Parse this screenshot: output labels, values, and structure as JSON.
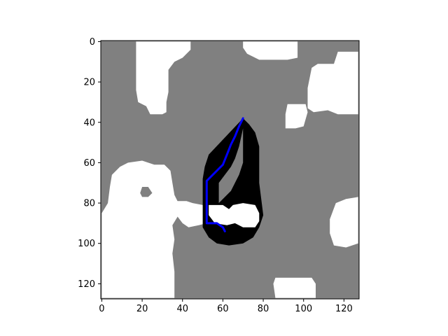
{
  "chart_data": {
    "type": "heatmap",
    "title": "",
    "xlabel": "",
    "ylabel": "",
    "xlim": [
      -0.5,
      127.5
    ],
    "ylim": [
      127.5,
      -0.5
    ],
    "y_axis_inverted": true,
    "grid": false,
    "colormap": {
      "background": "#808080",
      "free": "#ffffff",
      "obstacle": "#000000"
    },
    "x_ticks": [
      0,
      20,
      40,
      60,
      80,
      100,
      120
    ],
    "y_ticks": [
      0,
      20,
      40,
      60,
      80,
      100,
      120
    ],
    "x_tick_labels": [
      "0",
      "20",
      "40",
      "60",
      "80",
      "100",
      "120"
    ],
    "y_tick_labels": [
      "0",
      "20",
      "40",
      "60",
      "80",
      "100",
      "120"
    ],
    "free_regions": [
      {
        "points": [
          [
            17,
            0
          ],
          [
            44,
            0
          ],
          [
            44,
            4
          ],
          [
            40,
            8
          ],
          [
            36,
            10
          ],
          [
            33,
            14
          ],
          [
            33,
            25
          ],
          [
            32,
            30
          ],
          [
            32,
            35
          ],
          [
            30,
            36
          ],
          [
            24,
            36
          ],
          [
            22,
            32
          ],
          [
            18,
            30
          ],
          [
            17,
            24
          ],
          [
            17,
            10
          ]
        ]
      },
      {
        "points": [
          [
            70,
            0
          ],
          [
            97,
            0
          ],
          [
            97,
            8
          ],
          [
            92,
            9
          ],
          [
            78,
            9
          ],
          [
            72,
            6
          ],
          [
            70,
            3
          ]
        ]
      },
      {
        "points": [
          [
            117,
            5
          ],
          [
            127,
            5
          ],
          [
            127,
            36
          ],
          [
            117,
            36
          ],
          [
            112,
            34
          ],
          [
            105,
            35
          ],
          [
            102,
            33
          ],
          [
            102,
            23
          ],
          [
            104,
            13
          ],
          [
            107,
            11
          ],
          [
            115,
            11
          ]
        ]
      },
      {
        "points": [
          [
            92,
            31
          ],
          [
            101,
            31
          ],
          [
            102,
            35
          ],
          [
            100,
            42
          ],
          [
            96,
            43
          ],
          [
            91,
            43
          ],
          [
            91,
            36
          ]
        ]
      },
      {
        "points": [
          [
            5,
            66
          ],
          [
            9,
            62
          ],
          [
            13,
            60
          ],
          [
            20,
            59
          ],
          [
            26,
            61
          ],
          [
            31,
            61
          ],
          [
            34,
            64
          ],
          [
            35,
            70
          ],
          [
            36,
            76
          ],
          [
            38,
            80
          ],
          [
            38,
            86
          ],
          [
            35,
            91
          ],
          [
            36,
            98
          ],
          [
            35,
            105
          ],
          [
            36,
            114
          ],
          [
            36,
            127
          ],
          [
            0,
            127
          ],
          [
            0,
            85
          ],
          [
            3,
            80
          ],
          [
            4,
            72
          ]
        ]
      },
      {
        "points": [
          [
            37,
            79
          ],
          [
            42,
            79
          ],
          [
            45,
            80
          ],
          [
            50,
            81
          ],
          [
            52,
            84
          ],
          [
            52,
            90
          ],
          [
            48,
            91
          ],
          [
            43,
            92
          ],
          [
            40,
            90
          ],
          [
            37,
            86
          ]
        ]
      },
      {
        "points": [
          [
            53,
            81
          ],
          [
            60,
            81
          ],
          [
            63,
            83
          ],
          [
            65,
            81
          ],
          [
            70,
            80
          ],
          [
            76,
            81
          ],
          [
            78,
            85
          ],
          [
            78,
            89
          ],
          [
            76,
            92
          ],
          [
            70,
            92
          ],
          [
            66,
            90
          ],
          [
            62,
            91
          ],
          [
            56,
            90
          ],
          [
            53,
            86
          ]
        ]
      },
      {
        "points": [
          [
            121,
            78
          ],
          [
            127,
            77
          ],
          [
            127,
            100
          ],
          [
            121,
            102
          ],
          [
            115,
            101
          ],
          [
            113,
            95
          ],
          [
            113,
            88
          ],
          [
            116,
            80
          ]
        ]
      },
      {
        "points": [
          [
            86,
            117
          ],
          [
            104,
            117
          ],
          [
            106,
            120
          ],
          [
            106,
            127
          ],
          [
            86,
            127
          ],
          [
            85,
            120
          ]
        ]
      }
    ],
    "gray_patches": [
      {
        "points": [
          [
            20,
            72
          ],
          [
            23,
            72
          ],
          [
            25,
            75
          ],
          [
            23,
            77
          ],
          [
            20,
            77
          ],
          [
            19,
            75
          ]
        ]
      }
    ],
    "obstacle_regions": [
      {
        "points": [
          [
            70,
            38
          ],
          [
            53,
            56
          ],
          [
            51,
            62
          ],
          [
            50,
            68
          ],
          [
            50,
            80
          ],
          [
            50,
            86
          ],
          [
            50,
            92
          ],
          [
            53,
            97
          ],
          [
            57,
            100
          ],
          [
            63,
            101
          ],
          [
            70,
            100
          ],
          [
            75,
            97
          ],
          [
            78,
            92
          ],
          [
            80,
            86
          ],
          [
            79,
            78
          ],
          [
            78,
            70
          ],
          [
            78,
            62
          ],
          [
            78,
            52
          ],
          [
            76,
            45
          ],
          [
            73,
            41
          ]
        ]
      }
    ],
    "gray_inner_regions": [
      {
        "points": [
          [
            70,
            43
          ],
          [
            70,
            60
          ],
          [
            68,
            66
          ],
          [
            64,
            74
          ],
          [
            60,
            78
          ],
          [
            58,
            80
          ],
          [
            58,
            70
          ],
          [
            64,
            62
          ],
          [
            66,
            58
          ],
          [
            68,
            52
          ]
        ]
      }
    ],
    "series": [
      {
        "color": "#0000ff",
        "x": [
          70,
          68,
          66,
          64,
          62,
          60,
          58,
          56,
          54,
          52,
          52,
          52,
          52,
          52,
          52,
          54,
          57,
          60,
          61
        ],
        "y": [
          38,
          42,
          47,
          51,
          56,
          61,
          63,
          65,
          67,
          69,
          74,
          80,
          85,
          88,
          90,
          90,
          90,
          92,
          94
        ]
      }
    ]
  }
}
